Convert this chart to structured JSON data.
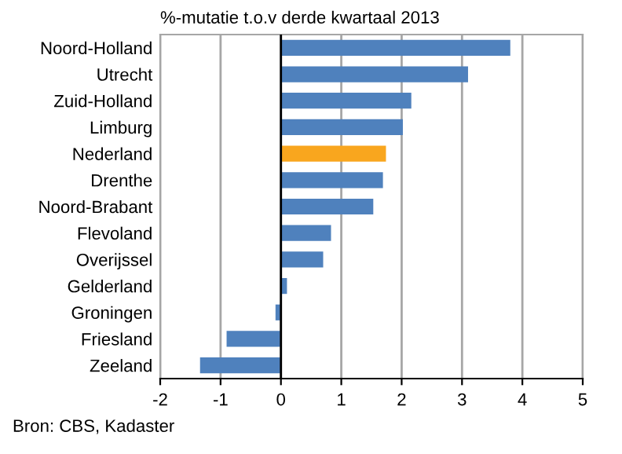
{
  "chart_data": {
    "type": "bar",
    "orientation": "horizontal",
    "title": "%-mutatie t.o.v derde kwartaal 2013",
    "categories": [
      "Noord-Holland",
      "Utrecht",
      "Zuid-Holland",
      "Limburg",
      "Nederland",
      "Drenthe",
      "Noord-Brabant",
      "Flevoland",
      "Overijssel",
      "Gelderland",
      "Groningen",
      "Friesland",
      "Zeeland"
    ],
    "values": [
      3.8,
      3.1,
      2.16,
      2.02,
      1.74,
      1.69,
      1.53,
      0.83,
      0.7,
      0.1,
      -0.09,
      -0.9,
      -1.34
    ],
    "colors": [
      "#4f81bd",
      "#4f81bd",
      "#4f81bd",
      "#4f81bd",
      "#f9a61e",
      "#4f81bd",
      "#4f81bd",
      "#4f81bd",
      "#4f81bd",
      "#4f81bd",
      "#4f81bd",
      "#4f81bd",
      "#4f81bd"
    ],
    "xlim": [
      -2,
      5
    ],
    "xticks": [
      -2,
      -1,
      0,
      1,
      2,
      3,
      4,
      5
    ],
    "grid": "x",
    "legend": false,
    "annotations": [
      "Bron: CBS, Kadaster"
    ]
  }
}
